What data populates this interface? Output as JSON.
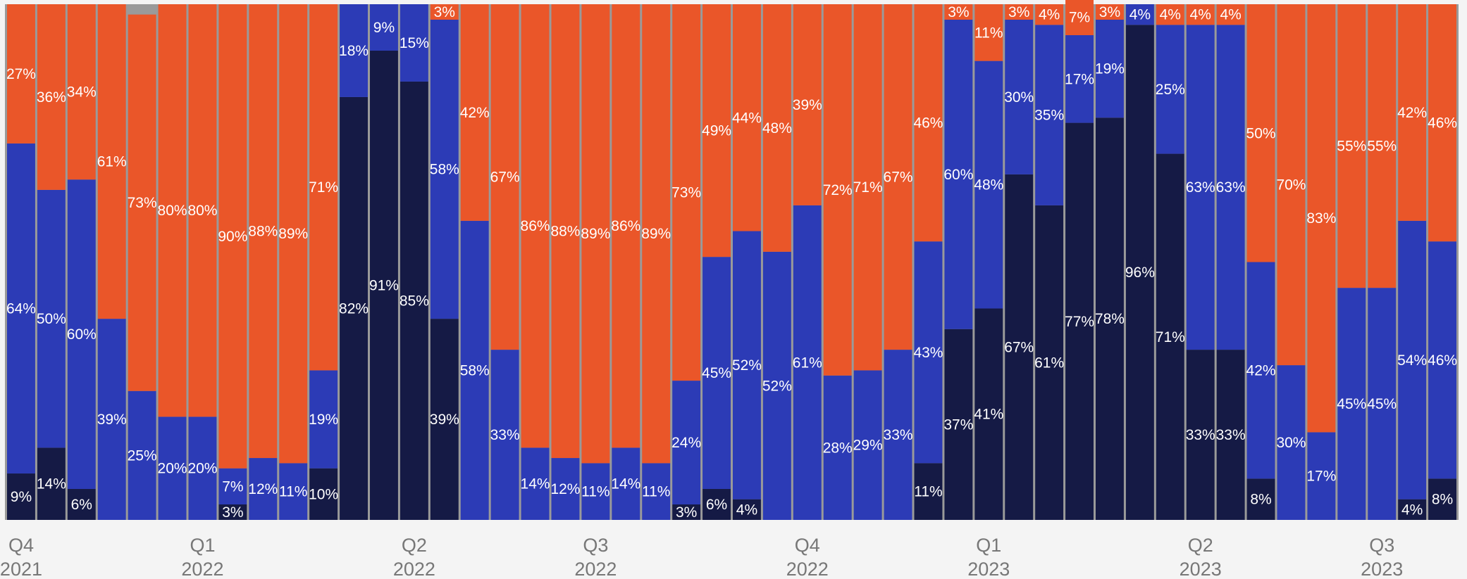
{
  "colors": {
    "dark": "#151a45",
    "blue": "#2c3bb6",
    "orange": "#ea5629",
    "separator": "#9a9a9a",
    "background": "#f4f4f4"
  },
  "chart_data": {
    "type": "bar",
    "stacked": true,
    "percent": true,
    "ylim": [
      0,
      100
    ],
    "title": "",
    "xlabel": "",
    "ylabel": "",
    "grid": false,
    "legend": "none",
    "x_tick_labels": [
      {
        "bar_index": 0,
        "quarter": "Q4",
        "year": "2021"
      },
      {
        "bar_index": 6,
        "quarter": "Q1",
        "year": "2022"
      },
      {
        "bar_index": 13,
        "quarter": "Q2",
        "year": "2022"
      },
      {
        "bar_index": 19,
        "quarter": "Q3",
        "year": "2022"
      },
      {
        "bar_index": 26,
        "quarter": "Q4",
        "year": "2022"
      },
      {
        "bar_index": 32,
        "quarter": "Q1",
        "year": "2023"
      },
      {
        "bar_index": 39,
        "quarter": "Q2",
        "year": "2023"
      },
      {
        "bar_index": 45,
        "quarter": "Q3",
        "year": "2023"
      }
    ],
    "series": [
      {
        "color_key": "dark",
        "values": [
          9,
          14,
          6,
          0,
          0,
          0,
          0,
          3,
          0,
          0,
          10,
          82,
          91,
          85,
          39,
          0,
          0,
          0,
          0,
          0,
          0,
          0,
          3,
          6,
          4,
          0,
          0,
          0,
          0,
          0,
          11,
          37,
          41,
          67,
          61,
          77,
          78,
          96,
          71,
          33,
          33,
          8,
          0,
          0,
          0,
          0,
          4,
          8
        ]
      },
      {
        "color_key": "blue",
        "values": [
          64,
          50,
          60,
          39,
          25,
          20,
          20,
          7,
          12,
          11,
          19,
          18,
          9,
          15,
          58,
          58,
          33,
          14,
          12,
          11,
          14,
          11,
          24,
          45,
          52,
          52,
          61,
          28,
          29,
          33,
          43,
          60,
          48,
          30,
          35,
          17,
          19,
          4,
          25,
          63,
          63,
          42,
          30,
          17,
          45,
          45,
          54,
          46
        ]
      },
      {
        "color_key": "orange",
        "values": [
          27,
          36,
          34,
          61,
          73,
          80,
          80,
          90,
          88,
          89,
          71,
          0,
          0,
          0,
          3,
          42,
          67,
          86,
          88,
          89,
          86,
          89,
          73,
          49,
          44,
          48,
          39,
          72,
          71,
          67,
          46,
          3,
          11,
          3,
          4,
          7,
          3,
          0,
          4,
          4,
          4,
          50,
          70,
          83,
          55,
          55,
          42,
          46
        ]
      }
    ]
  }
}
